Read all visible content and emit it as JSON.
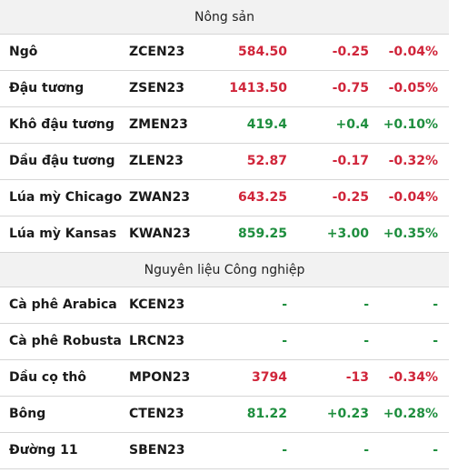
{
  "colors": {
    "up": "#1e8e3e",
    "down": "#d0253a",
    "header_bg": "#f2f2f2"
  },
  "sections": [
    {
      "title": "Nông sản",
      "rows": [
        {
          "name": "Ngô",
          "symbol": "ZCEN23",
          "price": "584.50",
          "change": "-0.25",
          "pct": "-0.04%",
          "dir": "down"
        },
        {
          "name": "Đậu tương",
          "symbol": "ZSEN23",
          "price": "1413.50",
          "change": "-0.75",
          "pct": "-0.05%",
          "dir": "down"
        },
        {
          "name": "Khô đậu tương",
          "symbol": "ZMEN23",
          "price": "419.4",
          "change": "+0.4",
          "pct": "+0.10%",
          "dir": "up"
        },
        {
          "name": "Dầu đậu tương",
          "symbol": "ZLEN23",
          "price": "52.87",
          "change": "-0.17",
          "pct": "-0.32%",
          "dir": "down"
        },
        {
          "name": "Lúa mỳ Chicago",
          "symbol": "ZWAN23",
          "price": "643.25",
          "change": "-0.25",
          "pct": "-0.04%",
          "dir": "down"
        },
        {
          "name": "Lúa mỳ Kansas",
          "symbol": "KWAN23",
          "price": "859.25",
          "change": "+3.00",
          "pct": "+0.35%",
          "dir": "up"
        }
      ]
    },
    {
      "title": "Nguyên liệu Công nghiệp",
      "rows": [
        {
          "name": "Cà phê Arabica",
          "symbol": "KCEN23",
          "price": "-",
          "change": "-",
          "pct": "-",
          "dir": "flat"
        },
        {
          "name": "Cà phê Robusta",
          "symbol": "LRCN23",
          "price": "-",
          "change": "-",
          "pct": "-",
          "dir": "flat"
        },
        {
          "name": "Dầu cọ thô",
          "symbol": "MPON23",
          "price": "3794",
          "change": "-13",
          "pct": "-0.34%",
          "dir": "down"
        },
        {
          "name": "Bông",
          "symbol": "CTEN23",
          "price": "81.22",
          "change": "+0.23",
          "pct": "+0.28%",
          "dir": "up"
        },
        {
          "name": "Đường 11",
          "symbol": "SBEN23",
          "price": "-",
          "change": "-",
          "pct": "-",
          "dir": "flat"
        }
      ]
    }
  ]
}
